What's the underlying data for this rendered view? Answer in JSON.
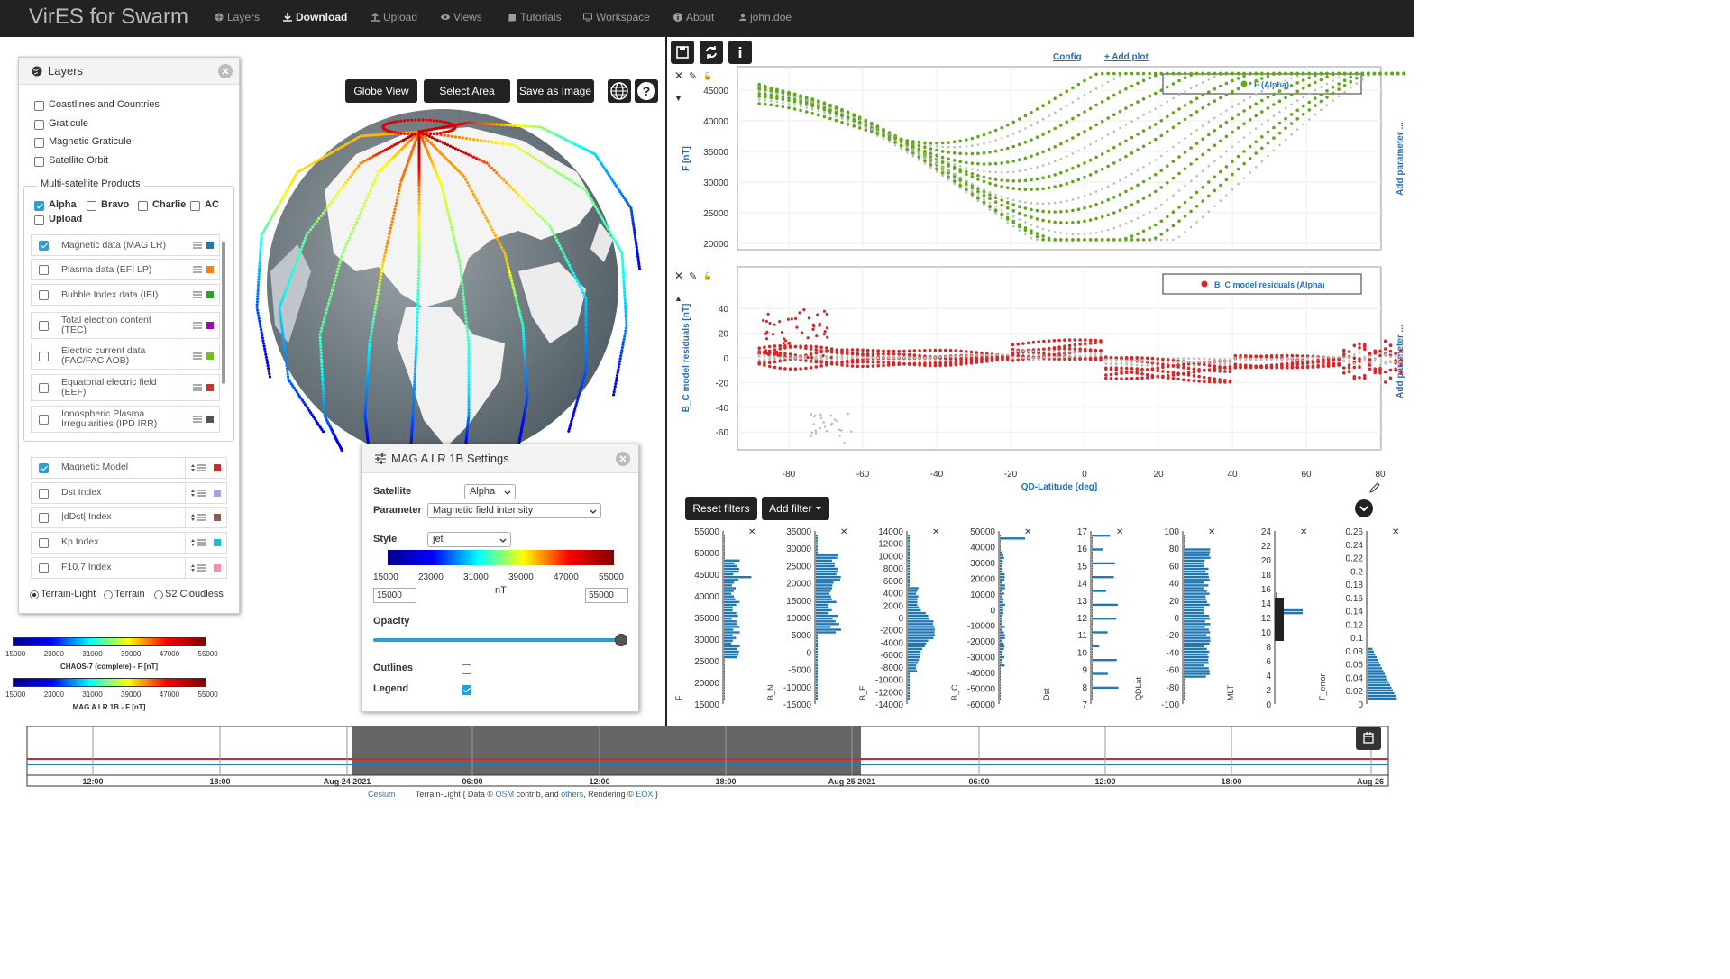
{
  "navbar": {
    "brand": "VirES for Swarm",
    "items": [
      {
        "label": "Layers",
        "icon": "globe-icon"
      },
      {
        "label": "Download",
        "icon": "download-icon",
        "active": true
      },
      {
        "label": "Upload",
        "icon": "upload-icon"
      },
      {
        "label": "Views",
        "icon": "eye-icon"
      },
      {
        "label": "Tutorials",
        "icon": "book-icon"
      },
      {
        "label": "Workspace",
        "icon": "monitor-icon"
      },
      {
        "label": "About",
        "icon": "info-icon"
      },
      {
        "label": "john.doe",
        "icon": "user-icon"
      }
    ]
  },
  "globe_toolbar": {
    "globe_view": "Globe View",
    "select_area": "Select Area",
    "save_image": "Save as Image"
  },
  "layers": {
    "title": "Layers",
    "base": [
      "Coastlines and Countries",
      "Graticule",
      "Magnetic Graticule",
      "Satellite Orbit"
    ],
    "multi_sat_title": "Multi-satellite Products",
    "sats": [
      {
        "label": "Alpha",
        "checked": true
      },
      {
        "label": "Bravo",
        "checked": false
      },
      {
        "label": "Charlie",
        "checked": false
      },
      {
        "label": "AC",
        "checked": false
      },
      {
        "label": "Upload",
        "checked": false
      }
    ],
    "products": [
      {
        "l1": "Magnetic data (MAG LR)",
        "l2": "",
        "checked": true,
        "color": "#1f77b4"
      },
      {
        "l1": "Plasma data (EFI LP)",
        "l2": "",
        "checked": false,
        "color": "#ff7f0e"
      },
      {
        "l1": "Bubble Index data (IBI)",
        "l2": "",
        "checked": false,
        "color": "#2ca02c"
      },
      {
        "l1": "Total electron content",
        "l2": "(TEC)",
        "checked": false,
        "color": "#9c0bb5"
      },
      {
        "l1": "Electric current data",
        "l2": "(FAC/FAC AOB)",
        "checked": false,
        "color": "#6fbf20"
      },
      {
        "l1": "Equatorial electric field",
        "l2": "(EEF)",
        "checked": false,
        "color": "#c0392b"
      },
      {
        "l1": "Ionospheric Plasma",
        "l2": "Irregularities (IPD IRR)",
        "checked": false,
        "color": "#555555"
      }
    ],
    "models": [
      {
        "label": "Magnetic Model",
        "checked": true,
        "color": "#d62728"
      },
      {
        "label": "Dst Index",
        "checked": false,
        "color": "#b39ddb"
      },
      {
        "label": "|dDst| Index",
        "checked": false,
        "color": "#8d5b4c"
      },
      {
        "label": "Kp Index",
        "checked": false,
        "color": "#17becf"
      },
      {
        "label": "F10.7 Index",
        "checked": false,
        "color": "#f48fb1"
      }
    ],
    "basemaps": [
      {
        "label": "Terrain-Light",
        "selected": true
      },
      {
        "label": "Terrain",
        "selected": false
      },
      {
        "label": "S2 Cloudless",
        "selected": false
      }
    ]
  },
  "legends": [
    {
      "ticks": [
        "15000",
        "23000",
        "31000",
        "39000",
        "47000",
        "55000"
      ],
      "title": "CHAOS-7 (complete) - F [nT]"
    },
    {
      "ticks": [
        "15000",
        "23000",
        "31000",
        "39000",
        "47000",
        "55000"
      ],
      "title": "MAG A LR 1B - F [nT]"
    }
  ],
  "settings": {
    "title": "MAG A LR 1B Settings",
    "satellite_label": "Satellite",
    "satellite_value": "Alpha",
    "parameter_label": "Parameter",
    "parameter_value": "Magnetic field intensity",
    "style_label": "Style",
    "style_value": "jet",
    "ticks": [
      "15000",
      "23000",
      "31000",
      "39000",
      "47000",
      "55000"
    ],
    "unit": "nT",
    "min": "15000",
    "max": "55000",
    "opacity_label": "Opacity",
    "opacity_value": 1.0,
    "outlines_label": "Outlines",
    "outlines_checked": false,
    "legend_label": "Legend",
    "legend_checked": true
  },
  "plots": {
    "config": "Config",
    "add_plot": "+ Add plot",
    "add_parameter": "Add parameter ...",
    "xlabel": "QD-Latitude [deg]",
    "xticks": [
      "-80",
      "-60",
      "-40",
      "-20",
      "0",
      "20",
      "40",
      "60",
      "80"
    ],
    "top": {
      "ylabel": "F [nT]",
      "legend": "F (Alpha)",
      "yticks": [
        "45000",
        "40000",
        "35000",
        "30000",
        "25000",
        "20000"
      ],
      "color": "#5fa81a"
    },
    "bottom": {
      "ylabel": "B_C model residuals [nT]",
      "legend": "B_C model residuals (Alpha)",
      "yticks": [
        "40",
        "20",
        "0",
        "-20",
        "-40",
        "-60"
      ],
      "color": "#d62728"
    }
  },
  "filters": {
    "reset": "Reset filters",
    "add": "Add filter",
    "panels": [
      {
        "name": "F",
        "ticks": [
          "55000",
          "50000",
          "45000",
          "40000",
          "35000",
          "30000",
          "25000",
          "20000",
          "15000"
        ]
      },
      {
        "name": "B_N",
        "ticks": [
          "35000",
          "30000",
          "25000",
          "20000",
          "15000",
          "10000",
          "5000",
          "0",
          "-5000",
          "-10000",
          "-15000"
        ]
      },
      {
        "name": "B_E",
        "ticks": [
          "14000",
          "12000",
          "10000",
          "8000",
          "6000",
          "4000",
          "2000",
          "0",
          "-2000",
          "-4000",
          "-6000",
          "-8000",
          "-10000",
          "-12000",
          "-14000"
        ]
      },
      {
        "name": "B_C",
        "ticks": [
          "50000",
          "40000",
          "30000",
          "20000",
          "10000",
          "0",
          "-10000",
          "-20000",
          "-30000",
          "-40000",
          "-50000",
          "-60000"
        ]
      },
      {
        "name": "Dst",
        "ticks": [
          "17",
          "16",
          "15",
          "14",
          "13",
          "12",
          "11",
          "10",
          "9",
          "8",
          "7"
        ]
      },
      {
        "name": "QDLat",
        "ticks": [
          "100",
          "80",
          "60",
          "40",
          "20",
          "0",
          "-20",
          "-40",
          "-60",
          "-80",
          "-100"
        ]
      },
      {
        "name": "MLT",
        "ticks": [
          "24",
          "22",
          "20",
          "18",
          "16",
          "14",
          "12",
          "10",
          "8",
          "6",
          "4",
          "2",
          "0"
        ]
      },
      {
        "name": "F_error",
        "ticks": [
          "0.26",
          "0.24",
          "0.22",
          "0.2",
          "0.18",
          "0.16",
          "0.14",
          "0.12",
          "0.1",
          "0.08",
          "0.06",
          "0.04",
          "0.02",
          "0"
        ]
      }
    ]
  },
  "timeline": {
    "ticks": [
      "12:00",
      "18:00",
      "Aug 24 2021",
      "06:00",
      "12:00",
      "18:00",
      "Aug 25 2021",
      "06:00",
      "12:00",
      "18:00",
      "Aug 26"
    ]
  },
  "attribution": {
    "cesium": "Cesium",
    "text1": "Terrain-Light { Data ©",
    "osm": "OSM",
    "text2": "contrib, and",
    "others": "others",
    "text3": ", Rendering ©",
    "eox": "EOX",
    "text4": "}"
  }
}
